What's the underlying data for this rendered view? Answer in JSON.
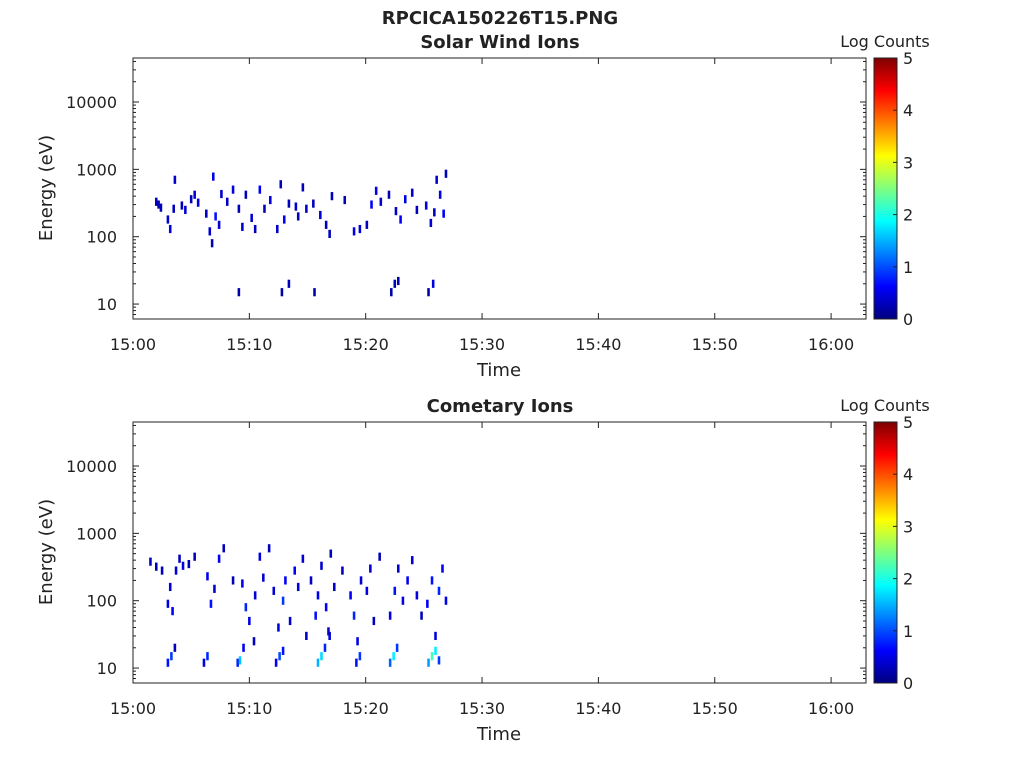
{
  "figure": {
    "title": "RPCICA150226T15.PNG"
  },
  "colormap": [
    "#00007f",
    "#0000ff",
    "#007fff",
    "#00ffff",
    "#7fff7f",
    "#ffff00",
    "#ff7f00",
    "#ff0000",
    "#7f0000"
  ],
  "chart_data": [
    {
      "type": "heatmap",
      "title": "Solar Wind Ions",
      "xlabel": "Time",
      "ylabel": "Energy (eV)",
      "xlim": [
        "15:00",
        "16:03"
      ],
      "ylim": [
        6,
        45000
      ],
      "yscale": "log",
      "xticks": [
        "15:00",
        "15:10",
        "15:20",
        "15:30",
        "15:40",
        "15:50",
        "16:00"
      ],
      "yticks": [
        "10",
        "100",
        "1000",
        "10000"
      ],
      "colorbar": {
        "label": "Log Counts",
        "min": 0,
        "max": 5,
        "ticks": [
          "0",
          "1",
          "2",
          "3",
          "4",
          "5"
        ]
      },
      "cells": [
        [
          2.0,
          330,
          0.3
        ],
        [
          2.2,
          300,
          0.2
        ],
        [
          2.4,
          270,
          0.3
        ],
        [
          3.0,
          180,
          0.4
        ],
        [
          3.2,
          130,
          0.5
        ],
        [
          3.5,
          260,
          0.3
        ],
        [
          3.6,
          700,
          0.4
        ],
        [
          4.2,
          290,
          0.3
        ],
        [
          4.5,
          250,
          0.4
        ],
        [
          5.0,
          360,
          0.3
        ],
        [
          5.3,
          420,
          0.4
        ],
        [
          5.6,
          320,
          0.5
        ],
        [
          6.3,
          220,
          0.3
        ],
        [
          6.6,
          120,
          0.4
        ],
        [
          6.8,
          80,
          0.3
        ],
        [
          6.9,
          780,
          0.5
        ],
        [
          7.1,
          200,
          0.7
        ],
        [
          7.4,
          150,
          0.4
        ],
        [
          7.6,
          430,
          0.4
        ],
        [
          8.1,
          330,
          0.3
        ],
        [
          8.6,
          500,
          0.5
        ],
        [
          9.1,
          260,
          0.3
        ],
        [
          9.4,
          140,
          0.4
        ],
        [
          9.7,
          420,
          0.3
        ],
        [
          10.2,
          190,
          0.4
        ],
        [
          10.5,
          130,
          0.3
        ],
        [
          10.9,
          500,
          0.6
        ],
        [
          11.3,
          260,
          0.3
        ],
        [
          11.8,
          350,
          0.5
        ],
        [
          12.4,
          130,
          0.4
        ],
        [
          12.7,
          600,
          0.3
        ],
        [
          13.0,
          180,
          0.6
        ],
        [
          13.4,
          310,
          0.3
        ],
        [
          14.0,
          280,
          0.4
        ],
        [
          14.2,
          200,
          0.3
        ],
        [
          14.6,
          540,
          0.3
        ],
        [
          14.9,
          260,
          0.4
        ],
        [
          15.5,
          310,
          0.3
        ],
        [
          16.1,
          210,
          0.4
        ],
        [
          16.6,
          150,
          0.3
        ],
        [
          16.9,
          110,
          0.3
        ],
        [
          17.1,
          400,
          0.3
        ],
        [
          18.2,
          350,
          0.3
        ],
        [
          19.0,
          120,
          0.5
        ],
        [
          19.5,
          130,
          0.4
        ],
        [
          20.1,
          150,
          0.3
        ],
        [
          20.5,
          300,
          0.6
        ],
        [
          20.9,
          480,
          0.5
        ],
        [
          21.3,
          330,
          0.4
        ],
        [
          22.0,
          420,
          0.3
        ],
        [
          22.6,
          240,
          0.4
        ],
        [
          23.0,
          180,
          0.6
        ],
        [
          23.4,
          360,
          0.5
        ],
        [
          24.0,
          450,
          0.4
        ],
        [
          24.4,
          250,
          0.3
        ],
        [
          25.2,
          290,
          0.5
        ],
        [
          25.6,
          160,
          0.4
        ],
        [
          25.9,
          230,
          0.3
        ],
        [
          26.1,
          700,
          0.4
        ],
        [
          26.4,
          420,
          0.5
        ],
        [
          26.7,
          220,
          0.6
        ],
        [
          26.9,
          860,
          0.3
        ],
        [
          9.1,
          15,
          0.2
        ],
        [
          12.8,
          15,
          0.2
        ],
        [
          13.4,
          20,
          0.3
        ],
        [
          15.6,
          15,
          0.2
        ],
        [
          22.2,
          15,
          0.2
        ],
        [
          22.5,
          20,
          0.3
        ],
        [
          22.8,
          22,
          0.2
        ],
        [
          25.4,
          15,
          0.2
        ],
        [
          25.8,
          20,
          0.5
        ]
      ]
    },
    {
      "type": "heatmap",
      "title": "Cometary Ions",
      "xlabel": "Time",
      "ylabel": "Energy (eV)",
      "xlim": [
        "15:00",
        "16:03"
      ],
      "ylim": [
        6,
        45000
      ],
      "yscale": "log",
      "xticks": [
        "15:00",
        "15:10",
        "15:20",
        "15:30",
        "15:40",
        "15:50",
        "16:00"
      ],
      "yticks": [
        "10",
        "100",
        "1000",
        "10000"
      ],
      "colorbar": {
        "label": "Log Counts",
        "min": 0,
        "max": 5,
        "ticks": [
          "0",
          "1",
          "2",
          "3",
          "4",
          "5"
        ]
      },
      "cells": [
        [
          1.5,
          380,
          0.3
        ],
        [
          2.0,
          320,
          0.2
        ],
        [
          2.5,
          280,
          0.3
        ],
        [
          3.0,
          90,
          0.5
        ],
        [
          3.2,
          160,
          0.4
        ],
        [
          3.4,
          70,
          0.6
        ],
        [
          3.7,
          280,
          0.4
        ],
        [
          4.0,
          420,
          0.3
        ],
        [
          4.3,
          330,
          0.5
        ],
        [
          4.8,
          350,
          0.3
        ],
        [
          5.3,
          450,
          0.3
        ],
        [
          6.4,
          230,
          0.5
        ],
        [
          6.7,
          90,
          0.7
        ],
        [
          7.0,
          150,
          0.4
        ],
        [
          7.4,
          420,
          0.6
        ],
        [
          7.8,
          600,
          0.3
        ],
        [
          8.6,
          200,
          0.3
        ],
        [
          9.4,
          180,
          0.6
        ],
        [
          9.7,
          80,
          0.8
        ],
        [
          10.0,
          50,
          0.5
        ],
        [
          10.5,
          120,
          0.4
        ],
        [
          10.9,
          450,
          0.5
        ],
        [
          11.2,
          220,
          0.4
        ],
        [
          11.7,
          600,
          0.3
        ],
        [
          12.1,
          140,
          0.4
        ],
        [
          12.5,
          40,
          0.5
        ],
        [
          12.9,
          100,
          0.9
        ],
        [
          13.1,
          200,
          0.6
        ],
        [
          13.5,
          50,
          0.4
        ],
        [
          13.9,
          280,
          0.6
        ],
        [
          14.2,
          160,
          0.5
        ],
        [
          14.6,
          420,
          0.4
        ],
        [
          14.9,
          30,
          0.4
        ],
        [
          15.3,
          200,
          0.3
        ],
        [
          15.7,
          60,
          0.7
        ],
        [
          15.9,
          120,
          0.5
        ],
        [
          16.2,
          330,
          0.4
        ],
        [
          16.6,
          80,
          0.6
        ],
        [
          16.8,
          35,
          0.4
        ],
        [
          17.0,
          500,
          0.3
        ],
        [
          17.3,
          160,
          0.4
        ],
        [
          18.0,
          280,
          0.3
        ],
        [
          18.7,
          120,
          0.6
        ],
        [
          19.0,
          60,
          0.8
        ],
        [
          19.3,
          25,
          0.5
        ],
        [
          19.6,
          200,
          0.4
        ],
        [
          20.1,
          140,
          0.5
        ],
        [
          20.4,
          300,
          0.4
        ],
        [
          20.7,
          50,
          0.3
        ],
        [
          21.2,
          450,
          0.3
        ],
        [
          22.1,
          60,
          0.5
        ],
        [
          22.5,
          140,
          0.7
        ],
        [
          22.8,
          300,
          0.4
        ],
        [
          23.2,
          100,
          0.5
        ],
        [
          23.6,
          200,
          0.6
        ],
        [
          24.0,
          400,
          0.4
        ],
        [
          24.4,
          120,
          0.5
        ],
        [
          24.8,
          60,
          0.3
        ],
        [
          25.3,
          90,
          0.6
        ],
        [
          25.7,
          200,
          0.7
        ],
        [
          26.0,
          30,
          0.5
        ],
        [
          26.3,
          140,
          0.8
        ],
        [
          26.6,
          300,
          0.6
        ],
        [
          26.9,
          100,
          0.5
        ],
        [
          3.0,
          12,
          0.7
        ],
        [
          3.3,
          15,
          0.9
        ],
        [
          3.6,
          20,
          0.3
        ],
        [
          6.1,
          12,
          0.5
        ],
        [
          6.4,
          15,
          0.8
        ],
        [
          9.0,
          12,
          0.8
        ],
        [
          9.2,
          13,
          1.6
        ],
        [
          9.5,
          20,
          0.6
        ],
        [
          10.4,
          25,
          0.3
        ],
        [
          12.3,
          12,
          0.6
        ],
        [
          12.6,
          15,
          1.0
        ],
        [
          12.9,
          18,
          0.7
        ],
        [
          15.9,
          12,
          1.5
        ],
        [
          16.2,
          15,
          1.7
        ],
        [
          16.5,
          20,
          0.8
        ],
        [
          16.9,
          30,
          0.4
        ],
        [
          19.2,
          12,
          0.7
        ],
        [
          19.5,
          15,
          0.9
        ],
        [
          22.1,
          12,
          1.1
        ],
        [
          22.4,
          15,
          1.8
        ],
        [
          22.7,
          20,
          0.9
        ],
        [
          25.4,
          12,
          1.4
        ],
        [
          25.7,
          15,
          2.2
        ],
        [
          26.0,
          18,
          1.8
        ],
        [
          26.3,
          13,
          0.9
        ]
      ]
    }
  ]
}
